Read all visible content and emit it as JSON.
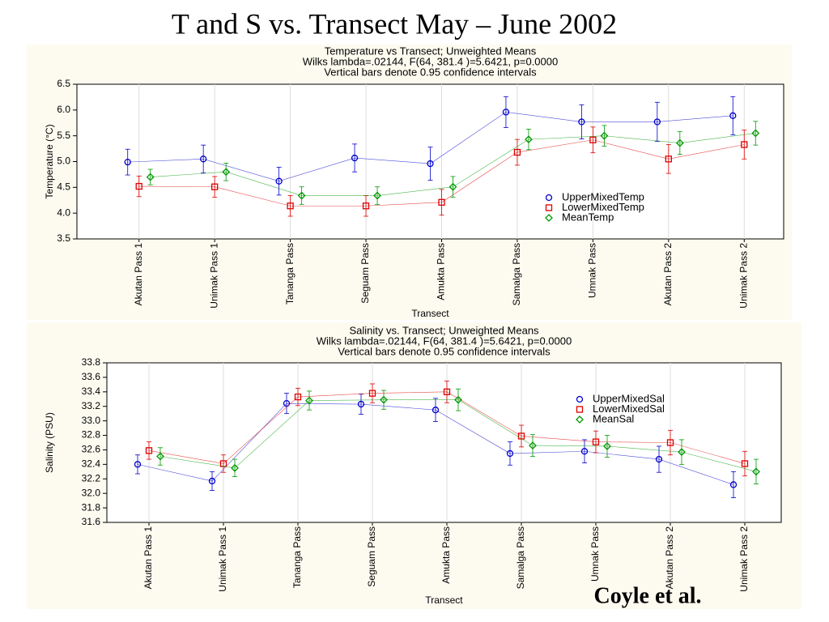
{
  "slide": {
    "title": "T and S vs. Transect May – June 2002",
    "credit": "Coyle et al."
  },
  "chart_data": [
    {
      "type": "line",
      "title": "Temperature vs Transect; Unweighted Means",
      "subtitle": [
        "Wilks lambda=.02144, F(64, 381.4 )=5.6421, p=0.0000",
        "Vertical bars denote 0.95 confidence intervals"
      ],
      "x_label": "Transect",
      "y_label": "Temperature (°C)",
      "categories": [
        "Akutan Pass 1",
        "Unimak Pass 1",
        "Tananga Pass",
        "Seguam Pass",
        "Amukta Pass",
        "Samalga Pass",
        "Umnak Pass",
        "Akutan Pass 2",
        "Unimak Pass 2"
      ],
      "ylim": [
        3.5,
        6.5
      ],
      "yticks": [
        3.5,
        {
          "value": 4,
          "label": "4.0"
        },
        4.5,
        {
          "value": 5,
          "label": "5.0"
        },
        5.5,
        {
          "value": 6,
          "label": "6.0"
        },
        6.5
      ],
      "grid": true,
      "series": [
        {
          "name": "UpperMixedTemp",
          "color": "#0000cc",
          "marker": "circle",
          "values": [
            4.99,
            5.05,
            4.62,
            5.07,
            4.96,
            5.96,
            5.77,
            5.77,
            5.89
          ],
          "errors": [
            0.25,
            0.27,
            0.27,
            0.27,
            0.32,
            0.3,
            0.33,
            0.38,
            0.37
          ]
        },
        {
          "name": "LowerMixedTemp",
          "color": "#dd0000",
          "marker": "square",
          "values": [
            4.52,
            4.51,
            4.14,
            4.14,
            4.21,
            5.18,
            5.42,
            5.05,
            5.33
          ],
          "errors": [
            0.2,
            0.2,
            0.2,
            0.2,
            0.25,
            0.25,
            0.25,
            0.28,
            0.28
          ]
        },
        {
          "name": "MeanTemp",
          "color": "#009900",
          "marker": "diamond",
          "values": [
            4.7,
            4.8,
            4.34,
            4.34,
            4.51,
            5.43,
            5.5,
            5.36,
            5.55
          ],
          "errors": [
            0.15,
            0.17,
            0.17,
            0.17,
            0.2,
            0.2,
            0.2,
            0.22,
            0.23
          ]
        }
      ]
    },
    {
      "type": "line",
      "title": "Salinity vs. Transect; Unweighted Means",
      "subtitle": [
        "Wilks lambda=.02144, F(64, 381.4 )=5.6421, p=0.0000",
        "Vertical bars denote 0.95 confidence intervals"
      ],
      "x_label": "Transect",
      "y_label": "Salinity (PSU)",
      "categories": [
        "Akutan Pass 1",
        "Unimak Pass 1",
        "Tananga Pass",
        "Seguam Pass",
        "Amukta Pass",
        "Samalga Pass",
        "Umnak Pass",
        "Akutan Pass 2",
        "Unimak Pass 2"
      ],
      "ylim": [
        31.6,
        33.8
      ],
      "yticks": [
        31.6,
        31.8,
        {
          "value": 32,
          "label": "32.0"
        },
        32.2,
        32.4,
        32.6,
        32.8,
        {
          "value": 33,
          "label": "33.0"
        },
        33.2,
        33.4,
        33.6,
        33.8
      ],
      "grid": true,
      "series": [
        {
          "name": "UpperMixedSal",
          "color": "#0000cc",
          "marker": "circle",
          "values": [
            32.4,
            32.17,
            33.24,
            33.23,
            33.15,
            32.55,
            32.58,
            32.47,
            32.12
          ],
          "errors": [
            0.13,
            0.13,
            0.14,
            0.14,
            0.16,
            0.16,
            0.16,
            0.18,
            0.18
          ]
        },
        {
          "name": "LowerMixedSal",
          "color": "#dd0000",
          "marker": "square",
          "values": [
            32.59,
            32.41,
            33.33,
            33.38,
            33.4,
            32.79,
            32.71,
            32.7,
            32.41
          ],
          "errors": [
            0.12,
            0.12,
            0.12,
            0.13,
            0.15,
            0.15,
            0.15,
            0.17,
            0.17
          ]
        },
        {
          "name": "MeanSal",
          "color": "#009900",
          "marker": "diamond",
          "values": [
            32.51,
            32.35,
            33.28,
            33.29,
            33.29,
            32.66,
            32.65,
            32.57,
            32.3
          ],
          "errors": [
            0.12,
            0.12,
            0.13,
            0.13,
            0.15,
            0.15,
            0.15,
            0.17,
            0.17
          ]
        }
      ]
    }
  ]
}
